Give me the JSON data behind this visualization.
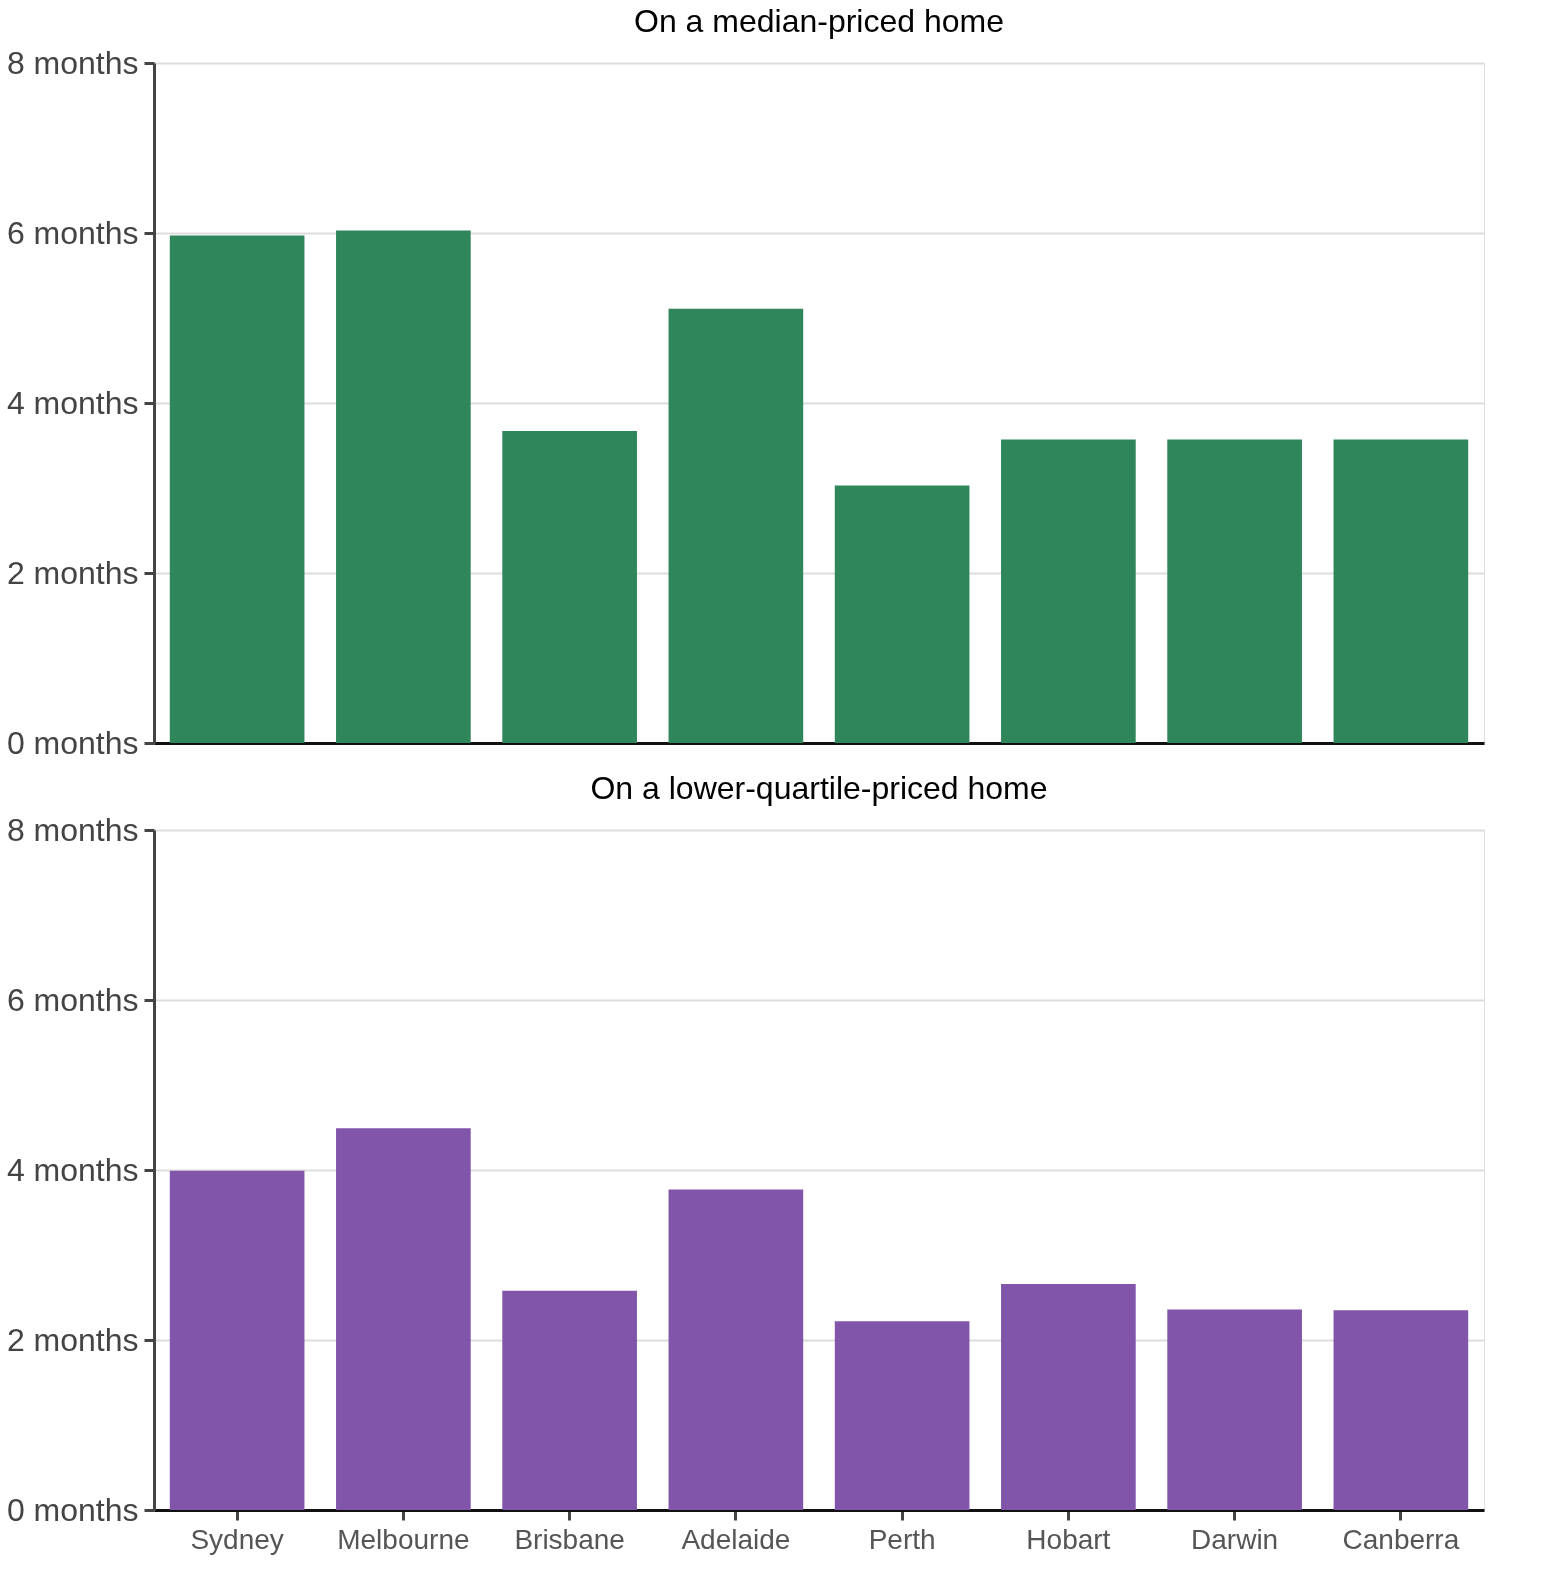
{
  "chart_data": [
    {
      "type": "bar",
      "title": "On a median-priced home",
      "categories": [
        null,
        null,
        null,
        null,
        null,
        null,
        null,
        null
      ],
      "values": [
        5.97,
        6.03,
        3.67,
        5.11,
        3.03,
        3.57,
        3.57,
        3.57
      ],
      "color": "#2e865a",
      "ylim": [
        0,
        8
      ],
      "yticks": [
        {
          "value": 0,
          "label": "0 months"
        },
        {
          "value": 2,
          "label": "2 months"
        },
        {
          "value": 4,
          "label": "4 months"
        },
        {
          "value": 6,
          "label": "6 months"
        },
        {
          "value": 8,
          "label": "8 months"
        }
      ],
      "grid": "y",
      "tick_labels": "y"
    },
    {
      "type": "bar",
      "title": "On a lower-quartile-priced home",
      "categories": [
        "Sydney",
        "Melbourne",
        "Brisbane",
        "Adelaide",
        "Perth",
        "Hobart",
        "Darwin",
        "Canberra"
      ],
      "values": [
        3.99,
        4.49,
        2.58,
        3.77,
        2.22,
        2.66,
        2.36,
        2.35
      ],
      "color": "#8155aa",
      "ylim": [
        0,
        8
      ],
      "yticks": [
        {
          "value": 0,
          "label": "0 months"
        },
        {
          "value": 2,
          "label": "2 months"
        },
        {
          "value": 4,
          "label": "4 months"
        },
        {
          "value": 6,
          "label": "6 months"
        },
        {
          "value": 8,
          "label": "8 months"
        }
      ],
      "grid": "y"
    }
  ]
}
